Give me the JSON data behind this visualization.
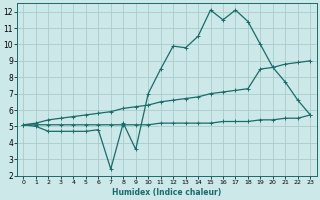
{
  "title": "",
  "xlabel": "Humidex (Indice chaleur)",
  "bg_color": "#cce8e8",
  "grid_color": "#aacccc",
  "line_color": "#1a6b6b",
  "xlim": [
    -0.5,
    23.5
  ],
  "ylim": [
    2,
    12.5
  ],
  "xticks": [
    0,
    1,
    2,
    3,
    4,
    5,
    6,
    7,
    8,
    9,
    10,
    11,
    12,
    13,
    14,
    15,
    16,
    17,
    18,
    19,
    20,
    21,
    22,
    23
  ],
  "yticks": [
    2,
    3,
    4,
    5,
    6,
    7,
    8,
    9,
    10,
    11,
    12
  ],
  "line1_x": [
    0,
    1,
    2,
    3,
    4,
    5,
    6,
    7,
    8,
    9,
    10,
    11,
    12,
    13,
    14,
    15,
    16,
    17,
    18,
    19,
    20,
    21,
    22,
    23
  ],
  "line1_y": [
    5.1,
    5.0,
    4.7,
    4.7,
    4.7,
    4.7,
    4.8,
    2.4,
    5.2,
    3.6,
    7.0,
    8.5,
    9.9,
    9.8,
    10.5,
    12.1,
    11.5,
    12.1,
    11.4,
    10.0,
    8.6,
    7.7,
    6.6,
    5.7
  ],
  "line2_x": [
    0,
    1,
    2,
    3,
    4,
    5,
    6,
    7,
    8,
    9,
    10,
    11,
    12,
    13,
    14,
    15,
    16,
    17,
    18,
    19,
    20,
    21,
    22,
    23
  ],
  "line2_y": [
    5.1,
    5.2,
    5.4,
    5.5,
    5.6,
    5.7,
    5.8,
    5.9,
    6.1,
    6.2,
    6.3,
    6.5,
    6.6,
    6.7,
    6.8,
    7.0,
    7.1,
    7.2,
    7.3,
    8.5,
    8.6,
    8.8,
    8.9,
    9.0
  ],
  "line3_x": [
    0,
    1,
    2,
    3,
    4,
    5,
    6,
    7,
    8,
    9,
    10,
    11,
    12,
    13,
    14,
    15,
    16,
    17,
    18,
    19,
    20,
    21,
    22,
    23
  ],
  "line3_y": [
    5.1,
    5.1,
    5.1,
    5.1,
    5.1,
    5.1,
    5.1,
    5.1,
    5.1,
    5.1,
    5.1,
    5.2,
    5.2,
    5.2,
    5.2,
    5.2,
    5.3,
    5.3,
    5.3,
    5.4,
    5.4,
    5.5,
    5.5,
    5.7
  ]
}
